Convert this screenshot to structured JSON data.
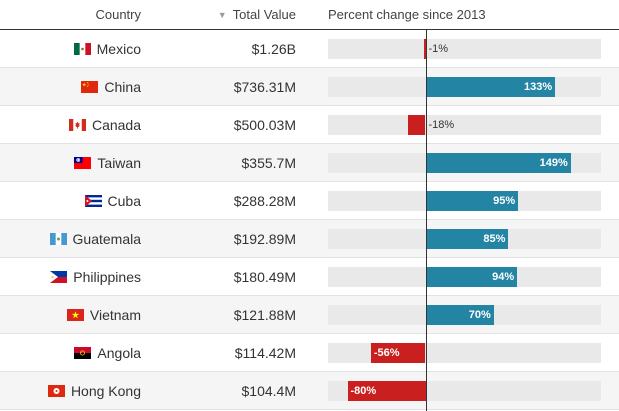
{
  "header": {
    "country": "Country",
    "total_value": "Total Value",
    "sort_icon": "sort-descending-icon",
    "percent_change": "Percent change since 2013"
  },
  "colors": {
    "positive": "#2484a4",
    "negative": "#c9201f",
    "track": "#e9e9e9",
    "row_alt": "#f5f5f5"
  },
  "chart_data": {
    "type": "bar",
    "orientation": "horizontal",
    "xlim": [
      -100,
      180
    ],
    "categories": [
      "Mexico",
      "China",
      "Canada",
      "Taiwan",
      "Cuba",
      "Guatemala",
      "Philippines",
      "Vietnam",
      "Angola",
      "Hong Kong"
    ],
    "total_values": [
      "$1.26B",
      "$736.31M",
      "$500.03M",
      "$355.7M",
      "$288.28M",
      "$192.89M",
      "$180.49M",
      "$121.88M",
      "$114.42M",
      "$104.4M"
    ],
    "series": [
      {
        "values": [
          -1,
          133,
          -18,
          149,
          95,
          85,
          94,
          70,
          -56,
          -80
        ],
        "labels": [
          "-1%",
          "133%",
          "-18%",
          "149%",
          "95%",
          "85%",
          "94%",
          "70%",
          "-56%",
          "-80%"
        ]
      }
    ],
    "flags": [
      "mexico-flag-icon",
      "china-flag-icon",
      "canada-flag-icon",
      "taiwan-flag-icon",
      "cuba-flag-icon",
      "guatemala-flag-icon",
      "philippines-flag-icon",
      "vietnam-flag-icon",
      "angola-flag-icon",
      "hong-kong-flag-icon"
    ]
  }
}
